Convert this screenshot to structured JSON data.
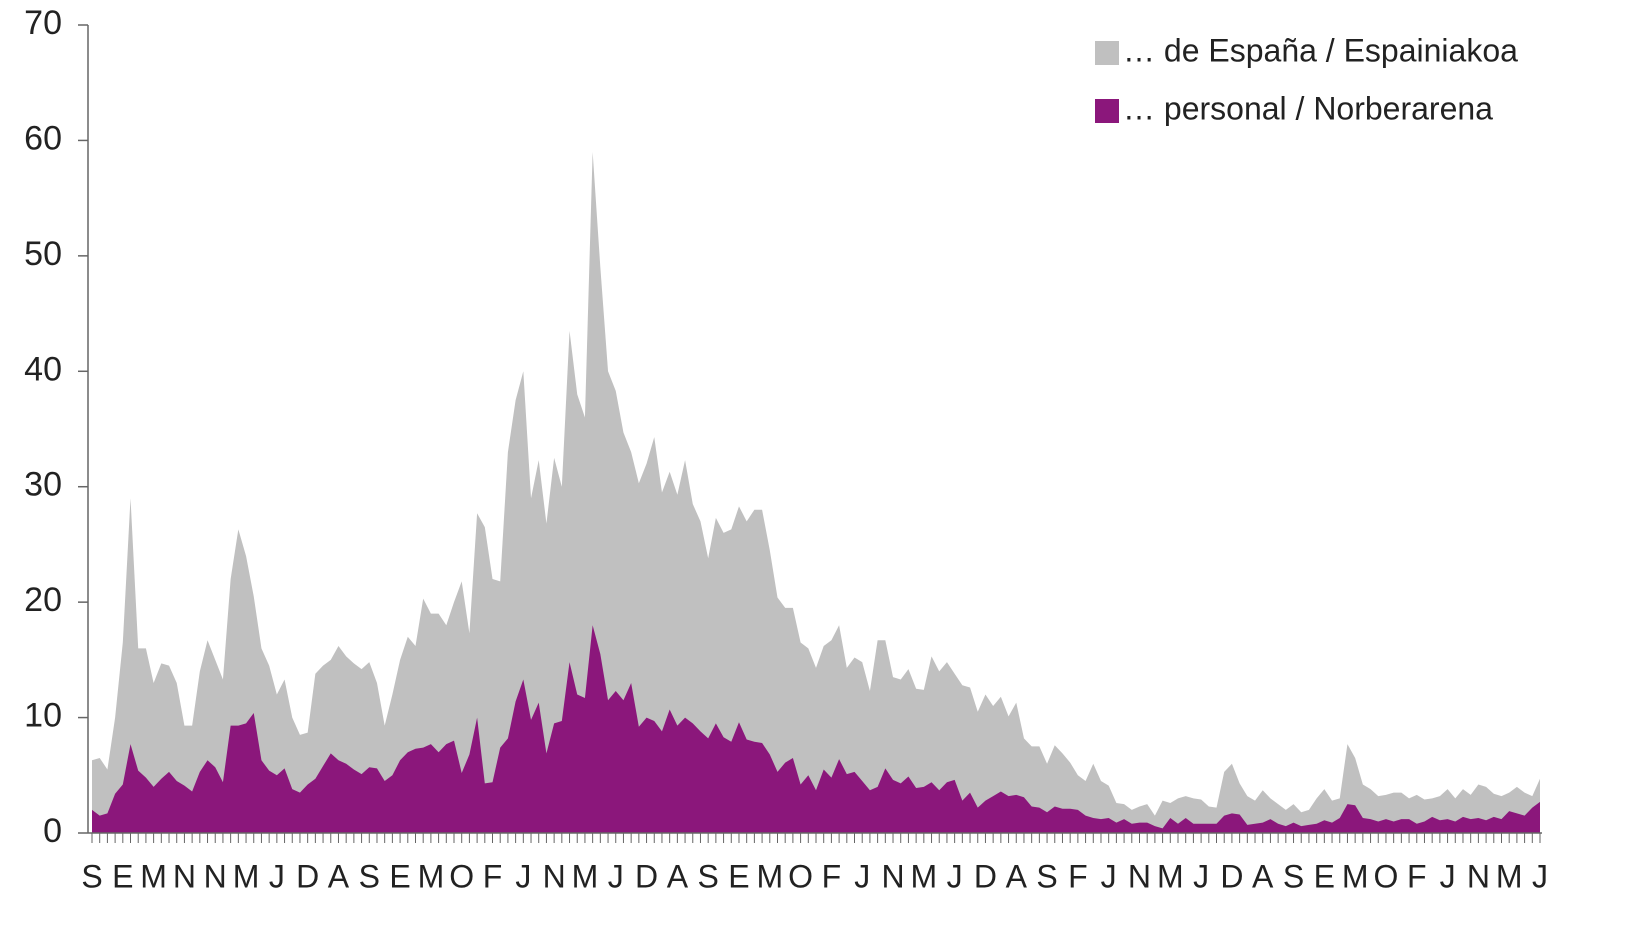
{
  "chart_data": {
    "type": "area",
    "categories": [
      "S",
      null,
      null,
      null,
      "E",
      null,
      null,
      null,
      "M",
      null,
      null,
      null,
      "N",
      null,
      null,
      null,
      "N",
      null,
      null,
      null,
      "M",
      null,
      null,
      null,
      "J",
      null,
      null,
      null,
      "D",
      null,
      null,
      null,
      "A",
      null,
      null,
      null,
      "S",
      null,
      null,
      null,
      "E",
      null,
      null,
      null,
      "M",
      null,
      null,
      null,
      "O",
      null,
      null,
      null,
      "F",
      null,
      null,
      null,
      "J",
      null,
      null,
      null,
      "N",
      null,
      null,
      null,
      "M",
      null,
      null,
      null,
      "J",
      null,
      null,
      null,
      "D",
      null,
      null,
      null,
      "A",
      null,
      null,
      null,
      "S",
      null,
      null,
      null,
      "E",
      null,
      null,
      null,
      "M",
      null,
      null,
      null,
      "O",
      null,
      null,
      null,
      "F",
      null,
      null,
      null,
      "J",
      null,
      null,
      null,
      "N",
      null,
      null,
      null,
      "M",
      null,
      null,
      null,
      "J",
      null,
      null,
      null,
      "D",
      null,
      null,
      null,
      "A",
      null,
      null,
      null,
      "S",
      null,
      null,
      null,
      "F",
      null,
      null,
      null,
      "J",
      null,
      null,
      null,
      "N",
      null,
      null,
      null,
      "M",
      null,
      null,
      null,
      "J",
      null,
      null,
      null,
      "D",
      null,
      null,
      null,
      "A",
      null,
      null,
      null,
      "S",
      null,
      null,
      null,
      "E",
      null,
      null,
      null,
      "M",
      null,
      null,
      null,
      "O",
      null,
      null,
      null,
      "F",
      null,
      null,
      null,
      "J",
      null,
      null,
      null,
      "N",
      null,
      null,
      null,
      "M",
      null,
      null,
      null,
      "J"
    ],
    "series": [
      {
        "name": "… de España / Espainiakoa",
        "color": "#c0c0c0",
        "values": [
          6.3,
          6.5,
          5.5,
          10,
          16.5,
          29,
          16,
          16,
          13,
          14.7,
          14.5,
          13,
          9.3,
          9.3,
          14,
          16.7,
          15,
          13.3,
          22,
          26.3,
          24,
          20.5,
          16,
          14.5,
          12,
          13.3,
          10,
          8.5,
          8.7,
          13.8,
          14.5,
          15,
          16.2,
          15.3,
          14.7,
          14.2,
          14.8,
          13,
          9.3,
          12,
          15,
          17,
          16.2,
          20.3,
          19,
          19,
          18,
          20,
          21.8,
          17.3,
          27.7,
          26.5,
          22,
          21.8,
          33,
          37.5,
          40,
          29,
          32.3,
          26.8,
          32.5,
          30,
          43.5,
          38,
          36,
          59,
          49,
          40,
          38.3,
          34.7,
          33,
          30.3,
          32,
          34.3,
          29.5,
          31.3,
          29.3,
          32.3,
          28.5,
          27,
          23.8,
          27.3,
          26,
          26.3,
          28.3,
          27,
          28,
          28,
          24.5,
          20.4,
          19.5,
          19.5,
          16.5,
          16,
          14.3,
          16.2,
          16.7,
          18,
          14.3,
          15.2,
          14.8,
          12.3,
          16.7,
          16.7,
          13.5,
          13.3,
          14.2,
          12.5,
          12.4,
          15.3,
          14,
          14.8,
          13.8,
          12.8,
          12.6,
          10.5,
          12,
          11,
          11.8,
          10.1,
          11.3,
          8.2,
          7.5,
          7.5,
          6,
          7.6,
          6.9,
          6.1,
          5,
          4.5,
          6,
          4.5,
          4.1,
          2.6,
          2.5,
          2,
          2.3,
          2.5,
          1.5,
          2.8,
          2.6,
          3,
          3.2,
          3,
          2.9,
          2.3,
          2.2,
          5.3,
          6,
          4.3,
          3.2,
          2.8,
          3.7,
          3,
          2.5,
          2,
          2.5,
          1.8,
          2,
          3,
          3.8,
          2.8,
          3,
          7.7,
          6.5,
          4.2,
          3.8,
          3.2,
          3.3,
          3.5,
          3.5,
          3,
          3.3,
          2.9,
          3,
          3.2,
          3.8,
          3,
          3.8,
          3.3,
          4.2,
          4,
          3.4,
          3.2,
          3.5,
          4,
          3.5,
          3.2,
          4.7
        ]
      },
      {
        "name": "… personal / Norberarena",
        "color": "#8b177b",
        "values": [
          2,
          1.5,
          1.7,
          3.4,
          4.2,
          7.7,
          5.4,
          4.8,
          4,
          4.7,
          5.3,
          4.5,
          4.1,
          3.6,
          5.3,
          6.3,
          5.7,
          4.4,
          9.3,
          9.3,
          9.5,
          10.4,
          6.3,
          5.4,
          5,
          5.6,
          3.8,
          3.5,
          4.2,
          4.7,
          5.8,
          6.9,
          6.3,
          6,
          5.5,
          5.1,
          5.7,
          5.6,
          4.5,
          5,
          6.3,
          7,
          7.3,
          7.4,
          7.7,
          7,
          7.7,
          8,
          5.2,
          6.8,
          10,
          4.3,
          4.4,
          7.4,
          8.2,
          11.4,
          13.3,
          9.8,
          11.3,
          6.9,
          9.5,
          9.7,
          14.8,
          12,
          11.7,
          18,
          15.5,
          11.5,
          12.3,
          11.5,
          13,
          9.2,
          10,
          9.7,
          8.8,
          10.7,
          9.3,
          10,
          9.5,
          8.8,
          8.2,
          9.5,
          8.3,
          7.9,
          9.6,
          8.1,
          7.9,
          7.8,
          6.8,
          5.3,
          6.1,
          6.5,
          4.2,
          5,
          3.7,
          5.5,
          4.8,
          6.4,
          5.1,
          5.3,
          4.5,
          3.7,
          4,
          5.6,
          4.6,
          4.3,
          4.9,
          3.9,
          4,
          4.4,
          3.7,
          4.4,
          4.6,
          2.8,
          3.5,
          2.2,
          2.8,
          3.2,
          3.6,
          3.2,
          3.3,
          3.1,
          2.3,
          2.2,
          1.8,
          2.3,
          2.1,
          2.1,
          2,
          1.5,
          1.3,
          1.2,
          1.3,
          0.9,
          1.2,
          0.8,
          0.9,
          0.9,
          0.6,
          0.4,
          1.3,
          0.8,
          1.3,
          0.8,
          0.8,
          0.8,
          0.8,
          1.5,
          1.7,
          1.6,
          0.7,
          0.8,
          0.9,
          1.2,
          0.8,
          0.6,
          0.9,
          0.6,
          0.7,
          0.8,
          1.1,
          0.9,
          1.3,
          2.5,
          2.4,
          1.3,
          1.2,
          1,
          1.2,
          1,
          1.2,
          1.2,
          0.8,
          1,
          1.4,
          1.1,
          1.2,
          1,
          1.4,
          1.2,
          1.3,
          1.1,
          1.4,
          1.2,
          1.9,
          1.7,
          1.5,
          2.2,
          2.7
        ]
      }
    ],
    "ylim": [
      0,
      70
    ],
    "yticks": [
      0,
      10,
      20,
      30,
      40,
      50,
      60,
      70
    ],
    "legend": "top-right"
  }
}
